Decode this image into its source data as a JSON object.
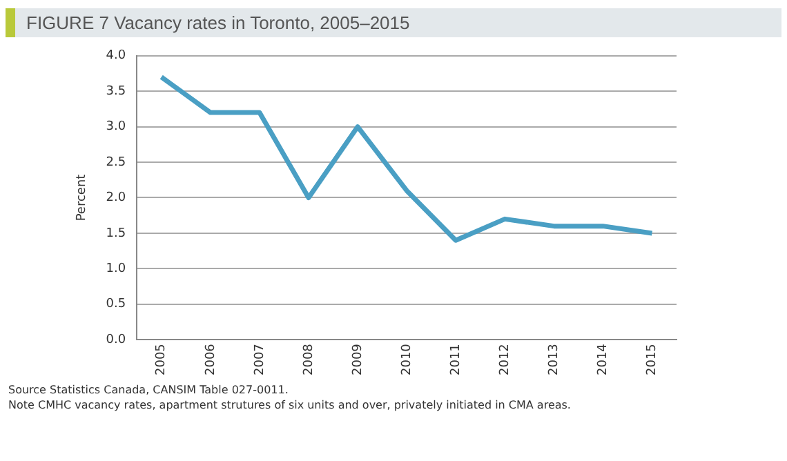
{
  "chart_data": {
    "type": "line",
    "title": "FIGURE 7 Vacancy rates in Toronto, 2005–2015",
    "ylabel": "Percent",
    "categories": [
      "2005",
      "2006",
      "2007",
      "2008",
      "2009",
      "2010",
      "2011",
      "2012",
      "2013",
      "2014",
      "2015"
    ],
    "series": [
      {
        "color": "#4a9fc4",
        "values": [
          3.7,
          3.2,
          3.2,
          2.0,
          3.0,
          2.1,
          1.4,
          1.7,
          1.6,
          1.6,
          1.5
        ]
      }
    ],
    "ylim": [
      0,
      4
    ],
    "yticks": [
      {
        "value": 0,
        "label": "0.0"
      },
      {
        "value": 0.5,
        "label": "0.5"
      },
      {
        "value": 1,
        "label": "1.0"
      },
      {
        "value": 1.5,
        "label": "1.5"
      },
      {
        "value": 2,
        "label": "2.0"
      },
      {
        "value": 2.5,
        "label": "2.5"
      },
      {
        "value": 3,
        "label": "3.0"
      },
      {
        "value": 3.5,
        "label": "3.5"
      },
      {
        "value": 4,
        "label": "4.0"
      }
    ],
    "grid": "y",
    "legend": false,
    "marker": "none",
    "line_style": "solid",
    "annotations": [
      "Source  Statistics Canada, CANSIM Table 027-0011.",
      "Note CMHC vacancy rates, apartment strutures of six units and over, privately initiated in CMA areas."
    ]
  }
}
